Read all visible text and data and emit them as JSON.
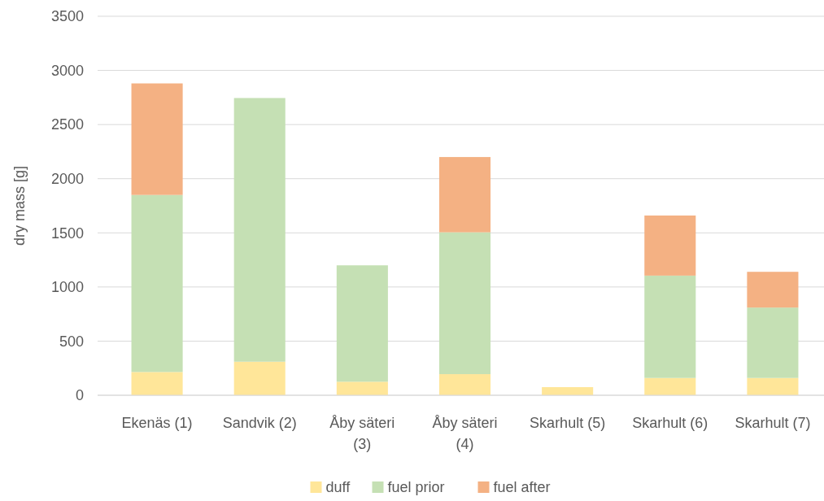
{
  "chart_data": {
    "type": "bar",
    "stacked": true,
    "ylabel": "dry mass [g]",
    "categories": [
      "Ekenäs (1)",
      "Sandvik (2)",
      "Åby säteri (3)",
      "Åby säteri (4)",
      "Skarhult (5)",
      "Skarhult (6)",
      "Skarhult (7)"
    ],
    "series": [
      {
        "name": "duff",
        "color": "#ffe699",
        "values": [
          215,
          310,
          125,
          195,
          75,
          160,
          160
        ]
      },
      {
        "name": "fuel prior",
        "color": "#c5e0b4",
        "values": [
          1635,
          2435,
          1075,
          1310,
          null,
          945,
          650
        ]
      },
      {
        "name": "fuel after",
        "color": "#f4b183",
        "values": [
          1030,
          null,
          null,
          695,
          null,
          555,
          330
        ]
      }
    ],
    "ylim": [
      0,
      3500
    ],
    "yticks": [
      0,
      500,
      1000,
      1500,
      2000,
      2500,
      3000,
      3500
    ],
    "grid": "y",
    "legend": "bottom"
  }
}
